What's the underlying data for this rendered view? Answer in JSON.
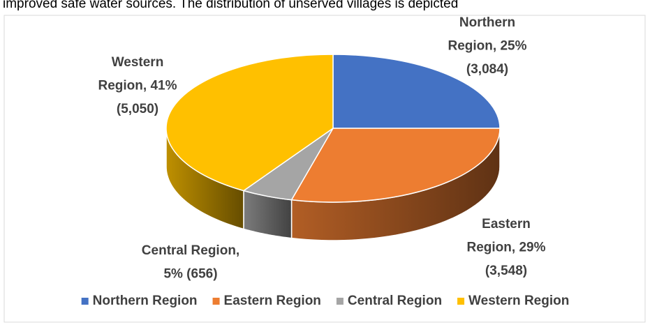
{
  "caption": "improved safe water sources. The distribution of unserved villages is depicted",
  "chart_data": {
    "type": "pie3d",
    "categories": [
      "Northern Region",
      "Eastern Region",
      "Central Region",
      "Western Region"
    ],
    "values": [
      25,
      29,
      5,
      41
    ],
    "value_labels": [
      [
        "Northern",
        "Region, 25%",
        "(3,084)"
      ],
      [
        "Eastern",
        "Region, 29%",
        "(3,548)"
      ],
      [
        "Central Region,",
        "5% (656)"
      ],
      [
        "Western",
        "Region, 41%",
        "(5,050)"
      ]
    ],
    "colors": [
      "#4472c4",
      "#ed7d31",
      "#a5a5a5",
      "#ffc000"
    ],
    "legend": "bottom"
  }
}
